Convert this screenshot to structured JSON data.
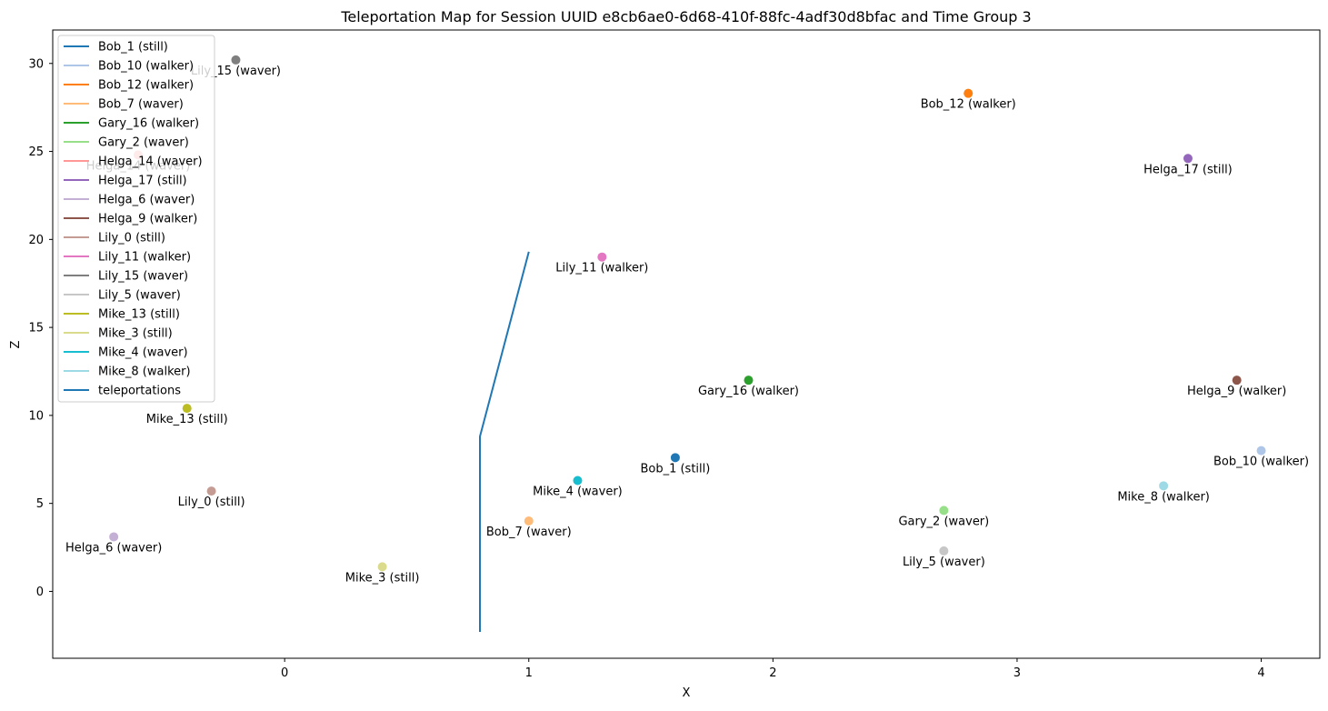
{
  "chart_data": {
    "type": "scatter",
    "title": "Teleportation Map for Session UUID e8cb6ae0-6d68-410f-88fc-4adf30d8bfac and Time Group 3",
    "xlabel": "X",
    "ylabel": "Z",
    "xlim": [
      -0.95,
      4.24
    ],
    "ylim": [
      -3.8,
      31.9
    ],
    "xticks": [
      0,
      1,
      2,
      3,
      4
    ],
    "yticks": [
      0,
      5,
      10,
      15,
      20,
      25,
      30
    ],
    "grid": false,
    "legend_position": "upper left",
    "series": [
      {
        "name": "Bob_1 (still)",
        "color": "#1f77b4",
        "x": 1.6,
        "y": 7.6
      },
      {
        "name": "Bob_10 (walker)",
        "color": "#aec7e8",
        "x": 4.0,
        "y": 8.0
      },
      {
        "name": "Bob_12 (walker)",
        "color": "#ff7f0e",
        "x": 2.8,
        "y": 28.3
      },
      {
        "name": "Bob_7 (waver)",
        "color": "#ffbb78",
        "x": 1.0,
        "y": 4.0
      },
      {
        "name": "Gary_16 (walker)",
        "color": "#2ca02c",
        "x": 1.9,
        "y": 12.0
      },
      {
        "name": "Gary_2 (waver)",
        "color": "#98df8a",
        "x": 2.7,
        "y": 4.6
      },
      {
        "name": "Helga_14 (waver)",
        "color": "#ff9896",
        "x": -0.6,
        "y": 24.8
      },
      {
        "name": "Helga_17 (still)",
        "color": "#9467bd",
        "x": 3.7,
        "y": 24.6
      },
      {
        "name": "Helga_6 (waver)",
        "color": "#c5b0d5",
        "x": -0.7,
        "y": 3.1
      },
      {
        "name": "Helga_9 (walker)",
        "color": "#8c564b",
        "x": 3.9,
        "y": 12.0
      },
      {
        "name": "Lily_0 (still)",
        "color": "#c49c94",
        "x": -0.3,
        "y": 5.7
      },
      {
        "name": "Lily_11 (walker)",
        "color": "#e377c2",
        "x": 1.3,
        "y": 19.0
      },
      {
        "name": "Lily_15 (waver)",
        "color": "#7f7f7f",
        "x": -0.2,
        "y": 30.2
      },
      {
        "name": "Lily_5 (waver)",
        "color": "#c7c7c7",
        "x": 2.7,
        "y": 2.3
      },
      {
        "name": "Mike_13 (still)",
        "color": "#bcbd22",
        "x": -0.4,
        "y": 10.4
      },
      {
        "name": "Mike_3 (still)",
        "color": "#dbdb8d",
        "x": 0.4,
        "y": 1.4
      },
      {
        "name": "Mike_4 (waver)",
        "color": "#17becf",
        "x": 1.2,
        "y": 6.3
      },
      {
        "name": "Mike_8 (walker)",
        "color": "#9edae5",
        "x": 3.6,
        "y": 6.0
      }
    ],
    "teleportations": {
      "name": "teleportations",
      "color": "#1f77b4",
      "x": [
        0.8,
        0.8,
        1.0
      ],
      "y": [
        -2.3,
        8.8,
        19.3
      ]
    }
  }
}
